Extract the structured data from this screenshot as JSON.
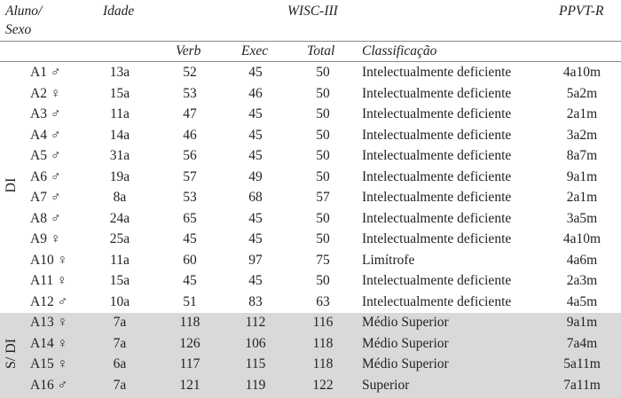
{
  "header": {
    "aluno": "Aluno/",
    "sexo": "Sexo",
    "idade": "Idade",
    "wisc": "WISC-III",
    "ppvt": "PPVT-R",
    "verb": "Verb",
    "exec": "Exec",
    "total": "Total",
    "classificacao": "Classificação"
  },
  "groups": {
    "di": "DI",
    "sdi": "S/ DI"
  },
  "rows": [
    {
      "aluno": "A1 ♂",
      "idade": "13a",
      "verb": "52",
      "exec": "45",
      "total": "50",
      "class": "Intelectualmente deficiente",
      "ppvt": "4a10m"
    },
    {
      "aluno": "A2 ♀",
      "idade": "15a",
      "verb": "53",
      "exec": "46",
      "total": "50",
      "class": "Intelectualmente deficiente",
      "ppvt": "5a2m"
    },
    {
      "aluno": "A3 ♂",
      "idade": "11a",
      "verb": "47",
      "exec": "45",
      "total": "50",
      "class": "Intelectualmente deficiente",
      "ppvt": "2a1m"
    },
    {
      "aluno": "A4 ♂",
      "idade": "14a",
      "verb": "46",
      "exec": "45",
      "total": "50",
      "class": "Intelectualmente deficiente",
      "ppvt": "3a2m"
    },
    {
      "aluno": "A5 ♂",
      "idade": "31a",
      "verb": "56",
      "exec": "45",
      "total": "50",
      "class": "Intelectualmente deficiente",
      "ppvt": "8a7m"
    },
    {
      "aluno": "A6 ♂",
      "idade": "19a",
      "verb": "57",
      "exec": "49",
      "total": "50",
      "class": "Intelectualmente deficiente",
      "ppvt": "9a1m"
    },
    {
      "aluno": "A7 ♂",
      "idade": "8a",
      "verb": "53",
      "exec": "68",
      "total": "57",
      "class": "Intelectualmente deficiente",
      "ppvt": "2a1m"
    },
    {
      "aluno": "A8 ♂",
      "idade": "24a",
      "verb": "65",
      "exec": "45",
      "total": "50",
      "class": "Intelectualmente deficiente",
      "ppvt": "3a5m"
    },
    {
      "aluno": "A9 ♀",
      "idade": "25a",
      "verb": "45",
      "exec": "45",
      "total": "50",
      "class": "Intelectualmente deficiente",
      "ppvt": "4a10m"
    },
    {
      "aluno": "A10 ♀",
      "idade": "11a",
      "verb": "60",
      "exec": "97",
      "total": "75",
      "class": "Limítrofe",
      "ppvt": "4a6m"
    },
    {
      "aluno": "A11 ♀",
      "idade": "15a",
      "verb": "45",
      "exec": "45",
      "total": "50",
      "class": "Intelectualmente deficiente",
      "ppvt": "2a3m"
    },
    {
      "aluno": "A12 ♂",
      "idade": "10a",
      "verb": "51",
      "exec": "83",
      "total": "63",
      "class": "Intelectualmente deficiente",
      "ppvt": "4a5m"
    },
    {
      "aluno": "A13 ♀",
      "idade": "7a",
      "verb": "118",
      "exec": "112",
      "total": "116",
      "class": "Médio Superior",
      "ppvt": "9a1m"
    },
    {
      "aluno": "A14 ♀",
      "idade": "7a",
      "verb": "126",
      "exec": "106",
      "total": "118",
      "class": "Médio Superior",
      "ppvt": "7a4m"
    },
    {
      "aluno": "A15 ♀",
      "idade": "6a",
      "verb": "117",
      "exec": "115",
      "total": "118",
      "class": "Médio Superior",
      "ppvt": "5a11m"
    },
    {
      "aluno": "A16 ♂",
      "idade": "7a",
      "verb": "121",
      "exec": "119",
      "total": "122",
      "class": "Superior",
      "ppvt": "7a11m"
    }
  ]
}
